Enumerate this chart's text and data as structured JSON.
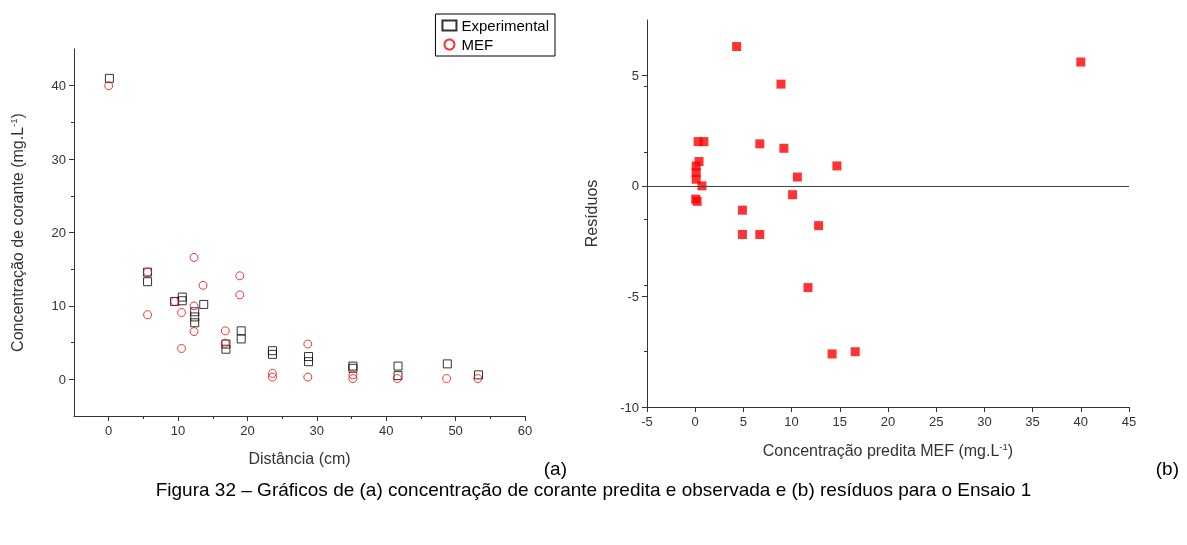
{
  "chart_data": [
    {
      "type": "scatter",
      "xlabel": "Distância (cm)",
      "ylabel": "Concentração de corante (mg.L$^{-1}$)",
      "xlim": [
        -5,
        60
      ],
      "xticks": [
        0,
        10,
        20,
        30,
        40,
        50,
        60
      ],
      "ylim": [
        -5,
        45
      ],
      "yticks": [
        0,
        10,
        20,
        30,
        40
      ],
      "grid": false,
      "legend": "top right",
      "annotations": [
        "(a)"
      ],
      "series": [
        {
          "name": "Experimental",
          "color": "#000000",
          "marker": "square",
          "x": [
            0.1,
            5.6,
            5.6,
            9.5,
            10.6,
            10.6,
            12.4,
            12.4,
            12.4,
            13.7,
            16.9,
            16.9,
            19.1,
            19.1,
            23.6,
            23.6,
            28.8,
            28.8,
            35.2,
            35.2,
            41.7,
            41.7,
            48.8,
            53.3
          ],
          "values": [
            41.0,
            14.6,
            13.3,
            10.6,
            11.2,
            10.7,
            9.2,
            8.5,
            7.7,
            10.2,
            4.8,
            4.1,
            6.6,
            5.5,
            3.9,
            3.4,
            3.1,
            2.4,
            1.8,
            1.5,
            1.8,
            0.5,
            2.1,
            0.6
          ]
        },
        {
          "name": "MEF",
          "color": "#ff0000",
          "marker": "circle",
          "x": [
            0,
            5.6,
            5.6,
            9.5,
            10.5,
            10.5,
            12.3,
            12.3,
            12.3,
            13.6,
            16.8,
            16.8,
            18.9,
            18.9,
            23.6,
            23.6,
            28.7,
            28.7,
            35.2,
            35.2,
            41.6,
            48.7,
            53.2
          ],
          "values": [
            40.0,
            14.6,
            8.8,
            10.6,
            9.1,
            4.2,
            16.6,
            10.0,
            6.5,
            12.8,
            6.6,
            4.9,
            14.1,
            11.5,
            0.8,
            0.3,
            4.8,
            0.3,
            0.6,
            0.1,
            0.1,
            0.1,
            0.1
          ]
        }
      ]
    },
    {
      "type": "scatter",
      "xlabel": "Concentração predita MEF (mg.L$^{-1}$)",
      "ylabel": "Resíduos",
      "xlim": [
        -5,
        45
      ],
      "xticks": [
        -5,
        0,
        5,
        10,
        15,
        20,
        25,
        30,
        35,
        40,
        45
      ],
      "ylim": [
        -10,
        7.5
      ],
      "yticks": [
        -10,
        -5,
        0,
        5
      ],
      "grid": false,
      "legend": false,
      "marker": "square",
      "ref_lines": [
        {
          "axis": "y",
          "value": 0,
          "color": "#404040"
        }
      ],
      "annotations": [
        "(b)",
        "Figura 32 – Gráficos de (a) concentração de corante predita e observada e (b) resíduos para o Ensaio 1"
      ],
      "series": [
        {
          "color": "#ff0000",
          "x": [
            4.3,
            8.9,
            40.0,
            0.3,
            0.9,
            6.7,
            9.2,
            0.4,
            0.1,
            0.1,
            0.1,
            14.7,
            10.6,
            0.7,
            10.1,
            0.05,
            0.2,
            4.9,
            4.9,
            6.7,
            12.8,
            11.7,
            14.2,
            16.6
          ],
          "values": [
            6.3,
            4.6,
            5.6,
            2.0,
            2.0,
            1.9,
            1.7,
            1.1,
            0.9,
            0.6,
            0.3,
            0.9,
            0.4,
            0.0,
            -0.4,
            -0.6,
            -0.7,
            -1.1,
            -2.2,
            -2.2,
            -1.8,
            -4.6,
            -7.6,
            -7.5
          ]
        }
      ]
    }
  ]
}
